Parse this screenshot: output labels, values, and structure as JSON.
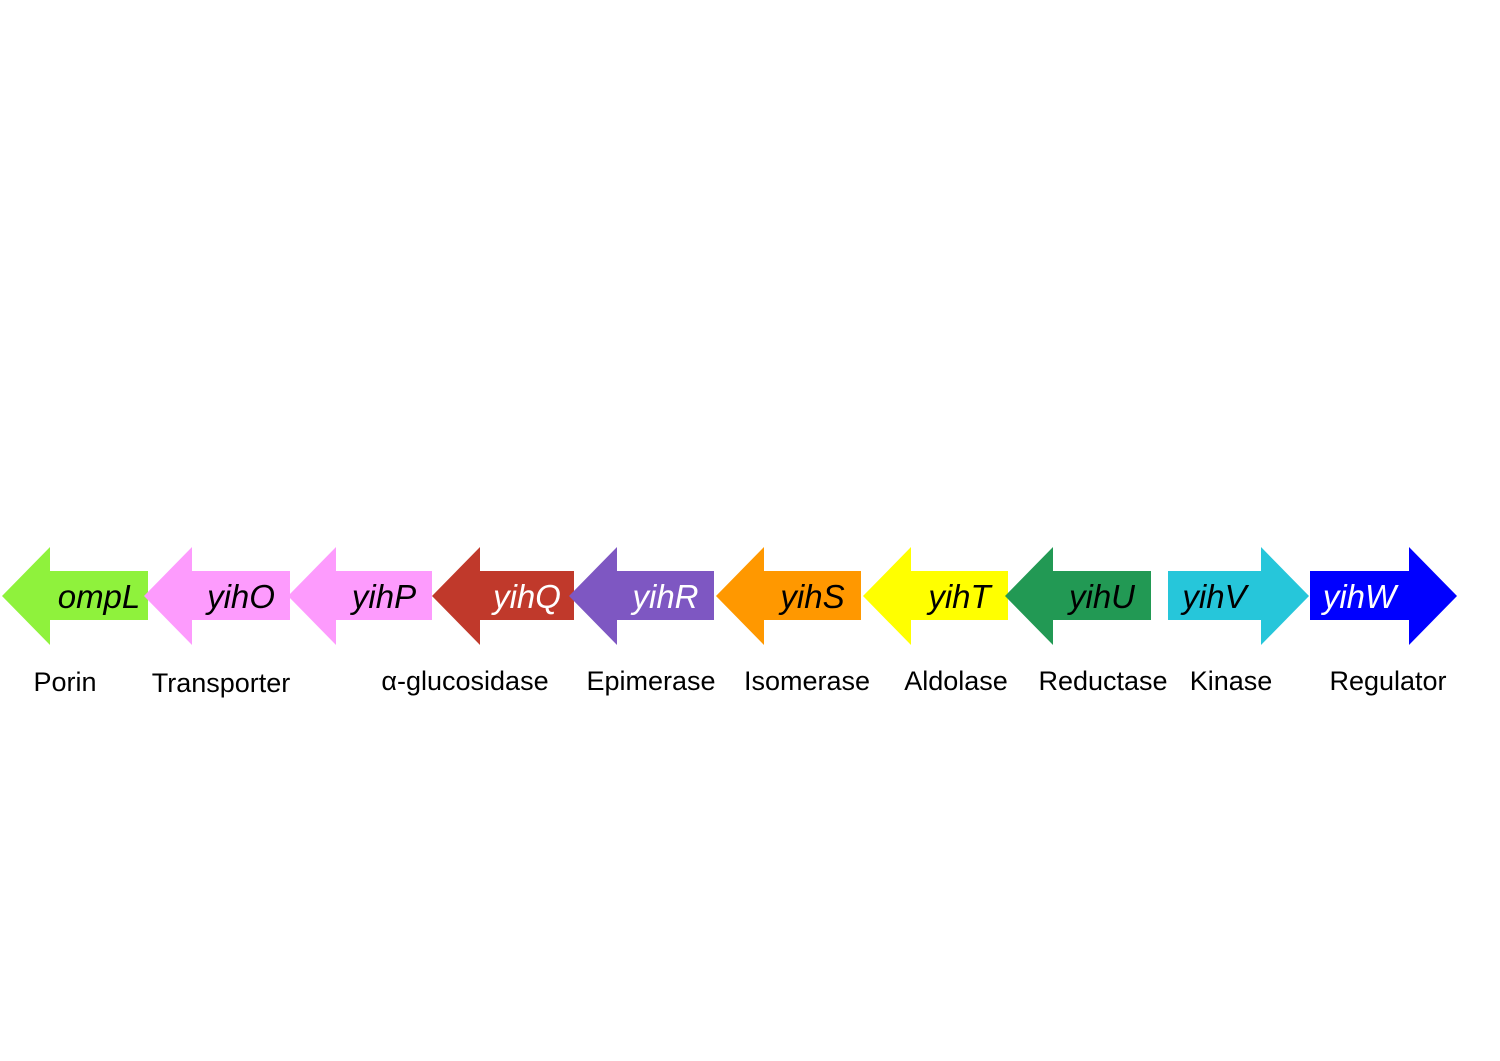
{
  "operon": {
    "genes": [
      {
        "name": "ompL",
        "function": "Porin",
        "color": "#8ff23c",
        "text_color": "#000000",
        "direction": "left"
      },
      {
        "name": "yihO",
        "function": "Transporter",
        "color": "#fd9bfd",
        "text_color": "#000000",
        "direction": "left"
      },
      {
        "name": "yihP",
        "function": "",
        "color": "#fd9bfd",
        "text_color": "#000000",
        "direction": "left"
      },
      {
        "name": "yihQ",
        "function": "α-glucosidase",
        "color": "#c0392b",
        "text_color": "#ffffff",
        "direction": "left"
      },
      {
        "name": "yihR",
        "function": "Epimerase",
        "color": "#7e57c2",
        "text_color": "#ffffff",
        "direction": "left"
      },
      {
        "name": "yihS",
        "function": "Isomerase",
        "color": "#ff9800",
        "text_color": "#000000",
        "direction": "left"
      },
      {
        "name": "yihT",
        "function": "Aldolase",
        "color": "#ffff00",
        "text_color": "#000000",
        "direction": "left"
      },
      {
        "name": "yihU",
        "function": "Reductase",
        "color": "#229954",
        "text_color": "#000000",
        "direction": "left"
      },
      {
        "name": "yihV",
        "function": "Kinase",
        "color": "#26c6da",
        "text_color": "#000000",
        "direction": "right"
      },
      {
        "name": "yihW",
        "function": "Regulator",
        "color": "#0000ff",
        "text_color": "#ffffff",
        "direction": "right"
      }
    ]
  }
}
